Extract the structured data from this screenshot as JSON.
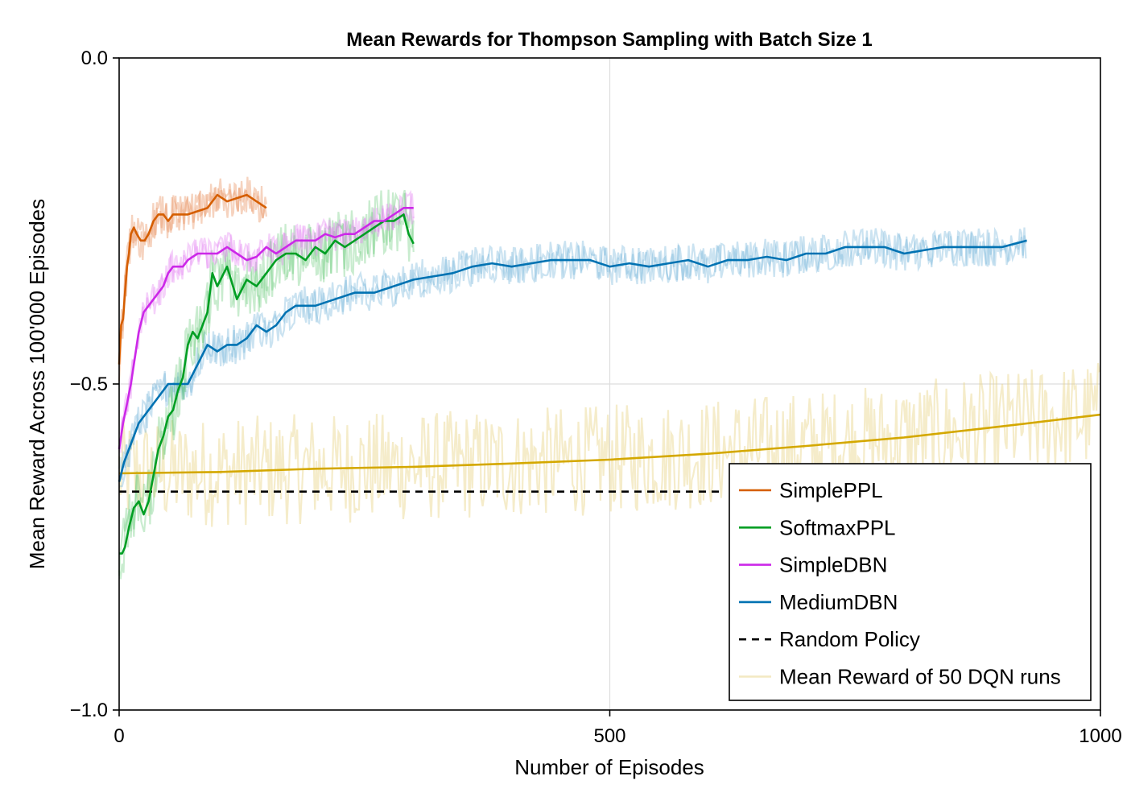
{
  "chart_data": {
    "type": "line",
    "title": "Mean Rewards for Thompson Sampling with Batch Size 1",
    "xlabel": "Number of Episodes",
    "ylabel": "Mean Reward Across 100'000 Episodes",
    "xlim": [
      0,
      1000
    ],
    "ylim": [
      -1.0,
      0.0
    ],
    "xticks": [
      0,
      500,
      1000
    ],
    "xtick_labels": [
      "0",
      "500",
      "1000"
    ],
    "yticks": [
      0.0,
      -0.5,
      -1.0
    ],
    "ytick_labels": [
      "0.0",
      "−0.5",
      "−1.0"
    ],
    "grid": true,
    "legend_position": "bottom-right",
    "series": [
      {
        "name": "SimplePPL",
        "color": "#d55e00",
        "style": "solid",
        "x": [
          0,
          2,
          4,
          6,
          8,
          10,
          12,
          15,
          18,
          22,
          26,
          30,
          35,
          40,
          45,
          50,
          55,
          60,
          70,
          80,
          90,
          100,
          110,
          120,
          130,
          140,
          150
        ],
        "y": [
          -0.47,
          -0.41,
          -0.4,
          -0.36,
          -0.32,
          -0.3,
          -0.27,
          -0.26,
          -0.27,
          -0.28,
          -0.28,
          -0.27,
          -0.25,
          -0.24,
          -0.24,
          -0.25,
          -0.24,
          -0.24,
          -0.24,
          -0.235,
          -0.23,
          -0.21,
          -0.22,
          -0.215,
          -0.21,
          -0.22,
          -0.23
        ]
      },
      {
        "name": "SoftmaxPPL",
        "color": "#009e23",
        "style": "solid",
        "x": [
          0,
          3,
          6,
          10,
          15,
          20,
          25,
          30,
          35,
          40,
          45,
          50,
          55,
          60,
          65,
          70,
          75,
          80,
          90,
          95,
          100,
          110,
          120,
          130,
          140,
          150,
          160,
          170,
          180,
          190,
          200,
          210,
          220,
          230,
          240,
          250,
          260,
          270,
          280,
          290,
          295,
          300
        ],
        "y": [
          -0.76,
          -0.76,
          -0.75,
          -0.72,
          -0.69,
          -0.68,
          -0.7,
          -0.68,
          -0.64,
          -0.6,
          -0.58,
          -0.55,
          -0.54,
          -0.51,
          -0.49,
          -0.44,
          -0.42,
          -0.43,
          -0.39,
          -0.33,
          -0.35,
          -0.32,
          -0.37,
          -0.34,
          -0.35,
          -0.33,
          -0.31,
          -0.3,
          -0.3,
          -0.31,
          -0.29,
          -0.3,
          -0.28,
          -0.29,
          -0.28,
          -0.27,
          -0.26,
          -0.25,
          -0.25,
          -0.24,
          -0.27,
          -0.285
        ]
      },
      {
        "name": "SimpleDBN",
        "color": "#cc28e8",
        "style": "solid",
        "x": [
          0,
          4,
          8,
          12,
          16,
          20,
          25,
          30,
          35,
          40,
          45,
          50,
          55,
          60,
          65,
          70,
          75,
          80,
          90,
          100,
          110,
          120,
          130,
          140,
          150,
          160,
          170,
          180,
          190,
          200,
          210,
          220,
          230,
          240,
          250,
          260,
          270,
          280,
          290,
          300
        ],
        "y": [
          -0.6,
          -0.56,
          -0.53,
          -0.5,
          -0.46,
          -0.42,
          -0.39,
          -0.38,
          -0.37,
          -0.36,
          -0.35,
          -0.33,
          -0.32,
          -0.32,
          -0.32,
          -0.31,
          -0.305,
          -0.3,
          -0.3,
          -0.3,
          -0.29,
          -0.3,
          -0.31,
          -0.305,
          -0.29,
          -0.3,
          -0.29,
          -0.28,
          -0.28,
          -0.28,
          -0.27,
          -0.275,
          -0.27,
          -0.27,
          -0.26,
          -0.25,
          -0.25,
          -0.24,
          -0.23,
          -0.23
        ]
      },
      {
        "name": "MediumDBN",
        "color": "#0072b2",
        "style": "solid",
        "x": [
          0,
          5,
          10,
          15,
          20,
          30,
          40,
          50,
          60,
          70,
          80,
          90,
          100,
          110,
          120,
          130,
          140,
          150,
          160,
          170,
          180,
          190,
          200,
          220,
          240,
          260,
          280,
          300,
          320,
          340,
          360,
          380,
          400,
          420,
          440,
          460,
          480,
          500,
          520,
          540,
          560,
          580,
          600,
          620,
          640,
          660,
          680,
          700,
          720,
          740,
          760,
          780,
          800,
          820,
          840,
          860,
          880,
          900,
          925
        ],
        "y": [
          -0.65,
          -0.62,
          -0.6,
          -0.58,
          -0.56,
          -0.54,
          -0.52,
          -0.5,
          -0.5,
          -0.5,
          -0.47,
          -0.44,
          -0.45,
          -0.44,
          -0.44,
          -0.43,
          -0.41,
          -0.42,
          -0.41,
          -0.39,
          -0.38,
          -0.38,
          -0.38,
          -0.37,
          -0.36,
          -0.36,
          -0.35,
          -0.34,
          -0.335,
          -0.33,
          -0.32,
          -0.315,
          -0.32,
          -0.315,
          -0.31,
          -0.31,
          -0.31,
          -0.32,
          -0.315,
          -0.32,
          -0.315,
          -0.31,
          -0.32,
          -0.31,
          -0.31,
          -0.305,
          -0.31,
          -0.3,
          -0.3,
          -0.29,
          -0.29,
          -0.29,
          -0.3,
          -0.295,
          -0.29,
          -0.29,
          -0.29,
          -0.29,
          -0.28
        ]
      },
      {
        "name": "Random Policy",
        "color": "#000000",
        "style": "dashed",
        "x": [
          0,
          1000
        ],
        "y": [
          -0.665,
          -0.665
        ]
      },
      {
        "name": "Mean Reward of 50 DQN runs",
        "color": "#d4a800",
        "style": "solid",
        "x": [
          0,
          100,
          200,
          300,
          400,
          500,
          600,
          700,
          800,
          900,
          1000
        ],
        "y": [
          -0.637,
          -0.635,
          -0.63,
          -0.627,
          -0.622,
          -0.616,
          -0.607,
          -0.595,
          -0.582,
          -0.565,
          -0.547
        ]
      }
    ]
  },
  "legend": {
    "items": [
      {
        "label": "SimplePPL",
        "color": "#d55e00",
        "style": "solid"
      },
      {
        "label": "SoftmaxPPL",
        "color": "#009e23",
        "style": "solid"
      },
      {
        "label": "SimpleDBN",
        "color": "#cc28e8",
        "style": "solid"
      },
      {
        "label": "MediumDBN",
        "color": "#0072b2",
        "style": "solid"
      },
      {
        "label": "Random Policy",
        "color": "#000000",
        "style": "dashed"
      },
      {
        "label": "Mean Reward of 50 DQN runs",
        "color": "#f3e9c2",
        "style": "solid"
      }
    ]
  }
}
